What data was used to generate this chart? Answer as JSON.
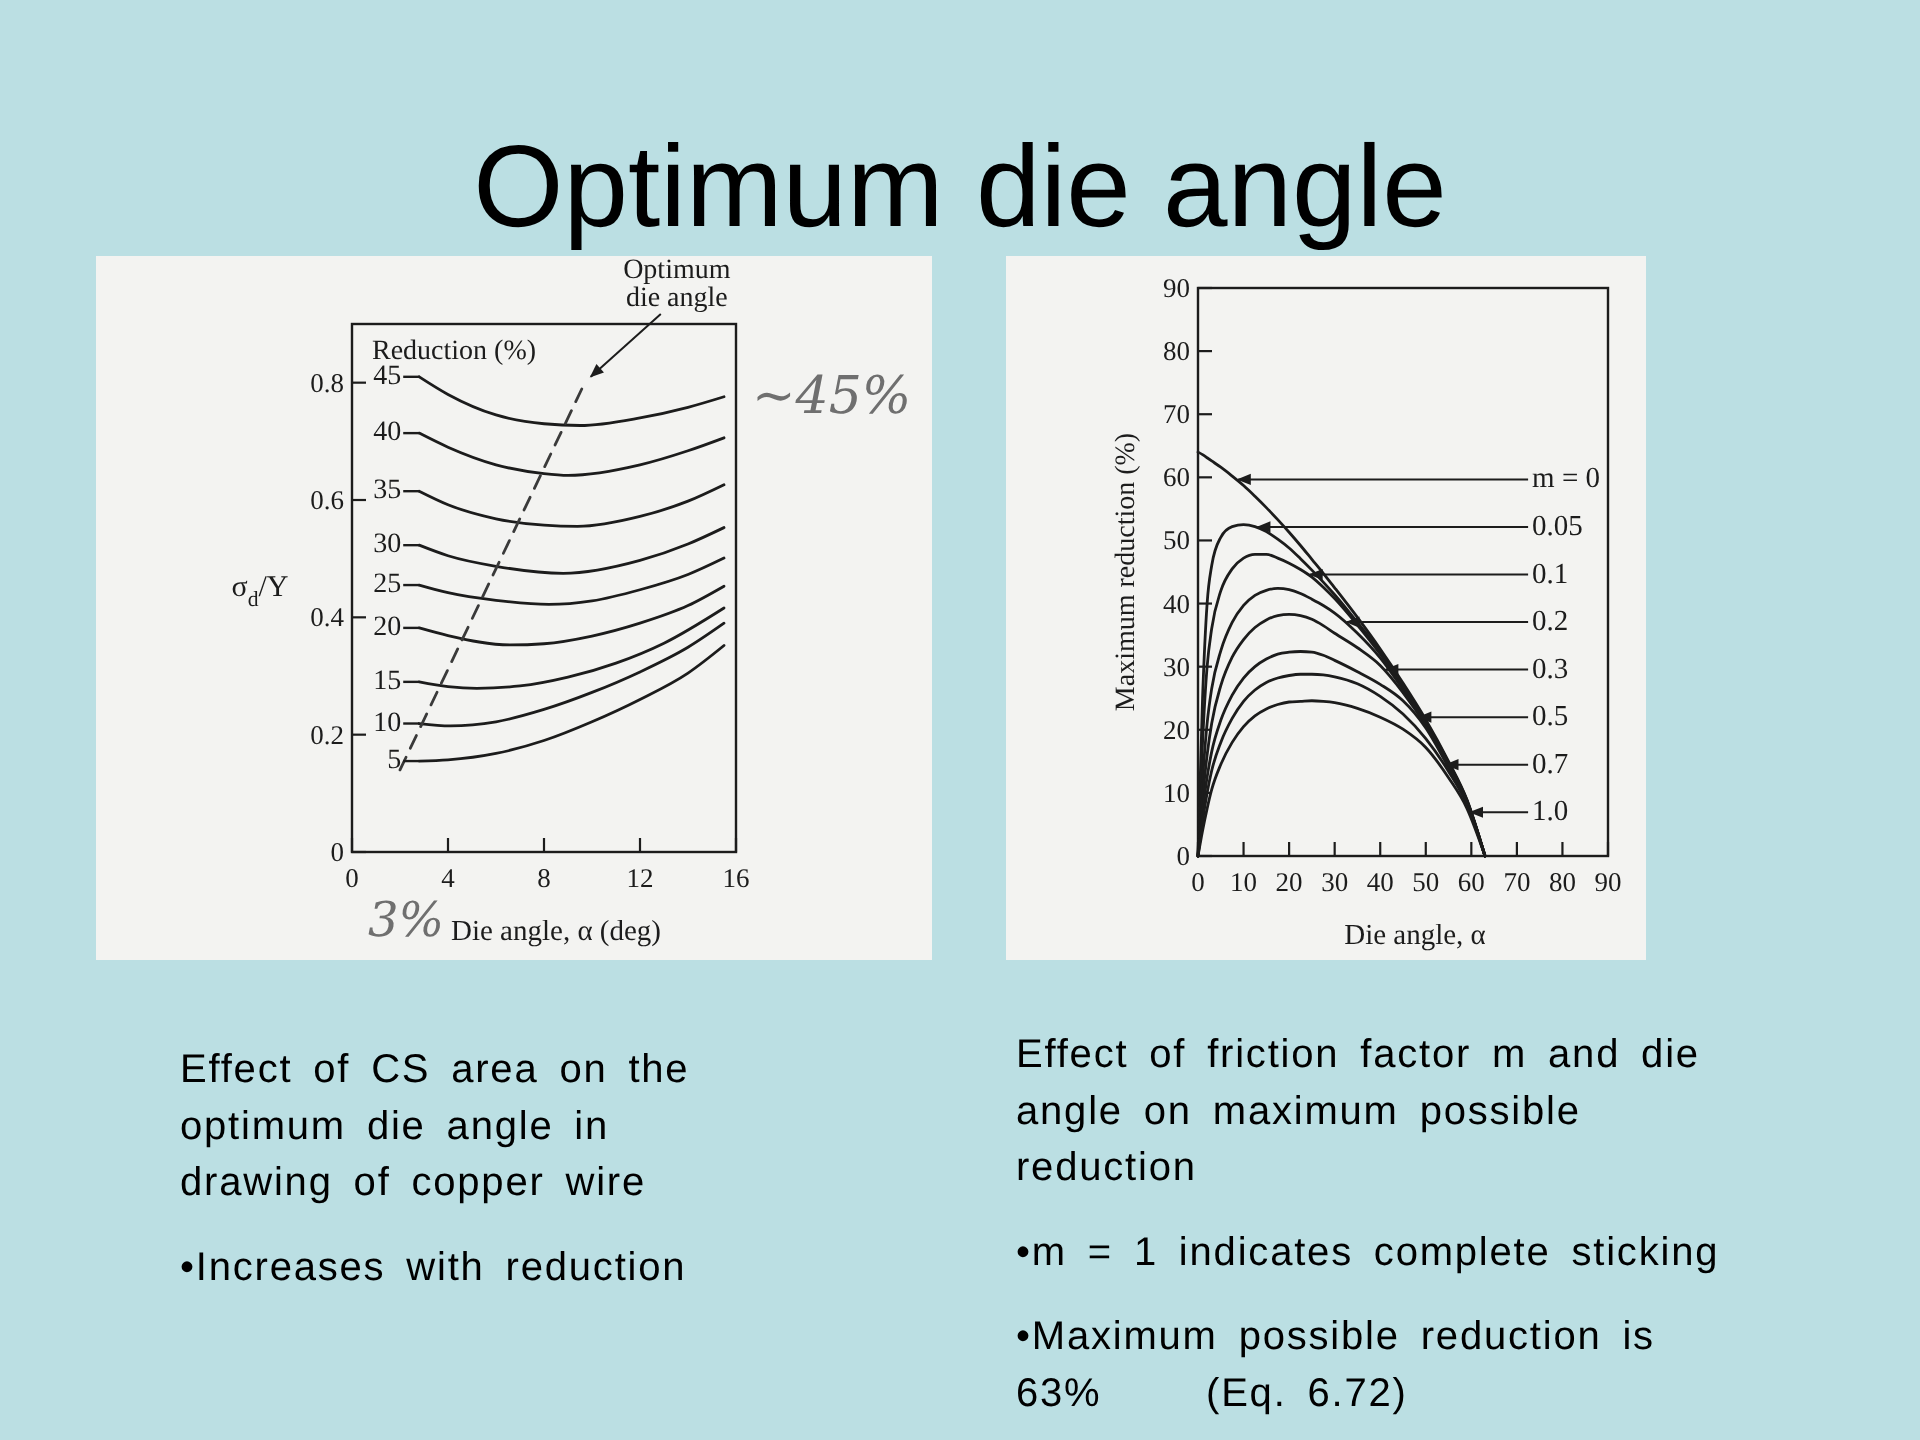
{
  "chart_data": [
    {
      "type": "line",
      "title": "Optimum die angle",
      "xlabel": "Die angle, α (deg)",
      "ylabel": "σ$_{d}$/Y",
      "legend_title": "Reduction (%)",
      "legend": "left",
      "xlim": [
        0,
        16
      ],
      "xticks": [
        0,
        4,
        8,
        12,
        16
      ],
      "ylim": [
        0,
        0.9
      ],
      "yticks": [
        0,
        0.2,
        0.4,
        0.6,
        0.8
      ],
      "series": [
        {
          "name": "45",
          "color": "#1c1c1c",
          "x": [
            2.8,
            4,
            6,
            8,
            9.5,
            12,
            14,
            15.5
          ],
          "values": [
            0.81,
            0.78,
            0.745,
            0.73,
            0.727,
            0.74,
            0.758,
            0.776
          ]
        },
        {
          "name": "40",
          "color": "#1c1c1c",
          "x": [
            2.8,
            4,
            6,
            8,
            9,
            12,
            14,
            15.5
          ],
          "values": [
            0.714,
            0.69,
            0.66,
            0.645,
            0.642,
            0.66,
            0.684,
            0.706
          ]
        },
        {
          "name": "35",
          "color": "#1c1c1c",
          "x": [
            2.8,
            4,
            6,
            8,
            9.4,
            12,
            14,
            15.5
          ],
          "values": [
            0.615,
            0.592,
            0.568,
            0.557,
            0.555,
            0.572,
            0.598,
            0.626
          ]
        },
        {
          "name": "30",
          "color": "#1c1c1c",
          "x": [
            2.8,
            4,
            6,
            8.8,
            12,
            14,
            15.5
          ],
          "values": [
            0.523,
            0.505,
            0.487,
            0.475,
            0.497,
            0.525,
            0.553
          ]
        },
        {
          "name": "25",
          "color": "#1c1c1c",
          "x": [
            2.8,
            4,
            6,
            8.2,
            10,
            12,
            14,
            15.5
          ],
          "values": [
            0.455,
            0.442,
            0.429,
            0.422,
            0.428,
            0.447,
            0.473,
            0.501
          ]
        },
        {
          "name": "20",
          "color": "#1c1c1c",
          "x": [
            2.8,
            4,
            6.6,
            8,
            10,
            12,
            14,
            15.5
          ],
          "values": [
            0.382,
            0.369,
            0.353,
            0.355,
            0.368,
            0.39,
            0.42,
            0.453
          ]
        },
        {
          "name": "15",
          "color": "#1c1c1c",
          "x": [
            2.8,
            4,
            5.2,
            7,
            9,
            11,
            13,
            15.5
          ],
          "values": [
            0.29,
            0.282,
            0.279,
            0.283,
            0.298,
            0.322,
            0.356,
            0.416
          ]
        },
        {
          "name": "10",
          "color": "#1c1c1c",
          "x": [
            2.8,
            4.1,
            6,
            8,
            10,
            12,
            14,
            15.5
          ],
          "values": [
            0.219,
            0.215,
            0.222,
            0.243,
            0.272,
            0.307,
            0.349,
            0.39
          ]
        },
        {
          "name": "5",
          "color": "#1c1c1c",
          "x": [
            2.8,
            4,
            6,
            8,
            10,
            12,
            14,
            15.5
          ],
          "values": [
            0.155,
            0.157,
            0.168,
            0.19,
            0.222,
            0.26,
            0.305,
            0.352
          ]
        },
        {
          "name": "Optimum die angle",
          "color": "#3a3a3a",
          "line_style": "dashed",
          "x": [
            2.0,
            9.7
          ],
          "values": [
            0.14,
            0.8
          ]
        }
      ],
      "annotations": [
        "Effect of CS area on the optimum die angle in drawing of copper wire",
        "•Increases with reduction",
        {
          "text": "~45%",
          "x": 15.5,
          "y": 0.776
        },
        "3%"
      ]
    },
    {
      "type": "line",
      "xlabel": "Die angle, α",
      "ylabel": "Maximum reduction (%)",
      "legend": "right",
      "x": [
        0,
        1,
        2,
        3,
        5,
        7.5,
        10,
        12.5,
        15,
        17.5,
        20,
        22.5,
        25,
        27.5,
        30,
        35,
        40,
        45,
        50,
        55,
        59,
        63
      ],
      "xlim": [
        0,
        90
      ],
      "xticks": [
        0,
        10,
        20,
        30,
        40,
        50,
        60,
        70,
        80,
        90
      ],
      "ylim": [
        0,
        90
      ],
      "yticks": [
        0,
        10,
        20,
        30,
        40,
        50,
        60,
        70,
        80,
        90
      ],
      "series": [
        {
          "name": "m = 0",
          "color": "#1c1c1c",
          "values": [
            64,
            63.6,
            63.1,
            62.6,
            61.6,
            60.2,
            58.7,
            57,
            55.2,
            53.3,
            51.3,
            49.2,
            47,
            44.8,
            42.5,
            37.8,
            32.8,
            27.4,
            21.6,
            15,
            9,
            0
          ]
        },
        {
          "name": "0.05",
          "color": "#1c1c1c",
          "values": [
            0,
            25,
            40,
            46,
            50.5,
            52.2,
            52.5,
            52.2,
            51.4,
            50.2,
            48.8,
            47.1,
            45.3,
            43.4,
            41.4,
            37,
            32.4,
            27.1,
            21.3,
            14.8,
            8.9,
            0
          ]
        },
        {
          "name": "0.1",
          "color": "#1c1c1c",
          "values": [
            0,
            18,
            30,
            36,
            42,
            45.5,
            47.2,
            47.8,
            47.8,
            47.2,
            46.4,
            45.4,
            44.2,
            42.6,
            40.8,
            36.6,
            32,
            26.8,
            21.1,
            14.7,
            8.8,
            0
          ]
        },
        {
          "name": "0.2",
          "color": "#1c1c1c",
          "values": [
            0,
            12,
            21,
            26.5,
            32.5,
            37,
            39.7,
            41.3,
            42.1,
            42.4,
            42.2,
            41.6,
            40.7,
            39.7,
            38.5,
            35.3,
            31.4,
            26.4,
            20.9,
            14.5,
            8.7,
            0
          ]
        },
        {
          "name": "0.3",
          "color": "#1c1c1c",
          "values": [
            0,
            9,
            16,
            21,
            27,
            31.5,
            34.3,
            36.2,
            37.4,
            38.1,
            38.3,
            38.1,
            37.5,
            36.5,
            35.3,
            33,
            30.2,
            25.9,
            20.7,
            14.4,
            8.7,
            0
          ]
        },
        {
          "name": "0.5",
          "color": "#1c1c1c",
          "values": [
            0,
            7,
            12.5,
            16.5,
            21.5,
            25.5,
            28.2,
            30,
            31.2,
            32,
            32.3,
            32.4,
            32.3,
            31.8,
            31,
            29.2,
            27.2,
            24.6,
            20.3,
            14,
            8.5,
            0
          ]
        },
        {
          "name": "0.7",
          "color": "#1c1c1c",
          "values": [
            0,
            5.5,
            10,
            13.5,
            18,
            21.8,
            24.5,
            26.3,
            27.5,
            28.2,
            28.6,
            28.8,
            28.8,
            28.7,
            28.4,
            27.3,
            25.3,
            22.5,
            18.6,
            13.4,
            8.2,
            0
          ]
        },
        {
          "name": "1.0",
          "color": "#1c1c1c",
          "values": [
            0,
            4,
            7.5,
            10.5,
            14.5,
            18,
            20.5,
            22.2,
            23.3,
            24,
            24.4,
            24.5,
            24.6,
            24.5,
            24.3,
            23.4,
            22,
            20.1,
            17.2,
            12.4,
            7.6,
            0
          ]
        }
      ],
      "annotations": [
        "Effect of friction factor m and die angle on maximum possible reduction",
        "•m = 1 indicates complete sticking",
        "•Maximum possible reduction is 63%     (Eq. 6.72)"
      ]
    }
  ]
}
